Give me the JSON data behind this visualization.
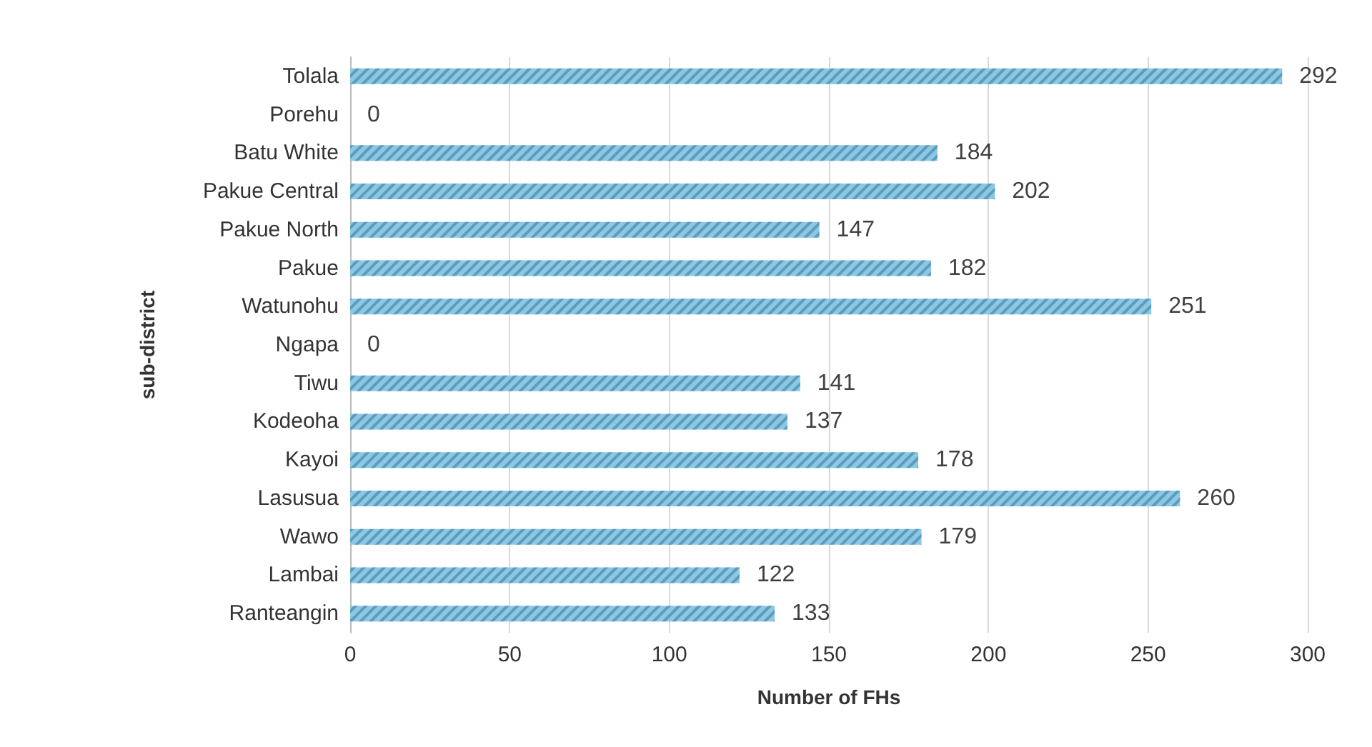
{
  "chart_data": {
    "type": "bar",
    "orientation": "horizontal",
    "xlabel": "Number of FHs",
    "ylabel": "sub-district",
    "categories": [
      "Tolala",
      "Porehu",
      "Batu White",
      "Pakue Central",
      "Pakue North",
      "Pakue",
      "Watunohu",
      "Ngapa",
      "Tiwu",
      "Kodeoha",
      "Kayoi",
      "Lasusua",
      "Wawo",
      "Lambai",
      "Ranteangin"
    ],
    "values": [
      292,
      0,
      184,
      202,
      147,
      182,
      251,
      0,
      141,
      137,
      178,
      260,
      179,
      122,
      133
    ],
    "color": "#8cc8e4",
    "xlim": [
      0,
      300
    ],
    "xticks": [
      0,
      50,
      100,
      150,
      200,
      250,
      300
    ],
    "grid": "x",
    "data_labels": true
  }
}
